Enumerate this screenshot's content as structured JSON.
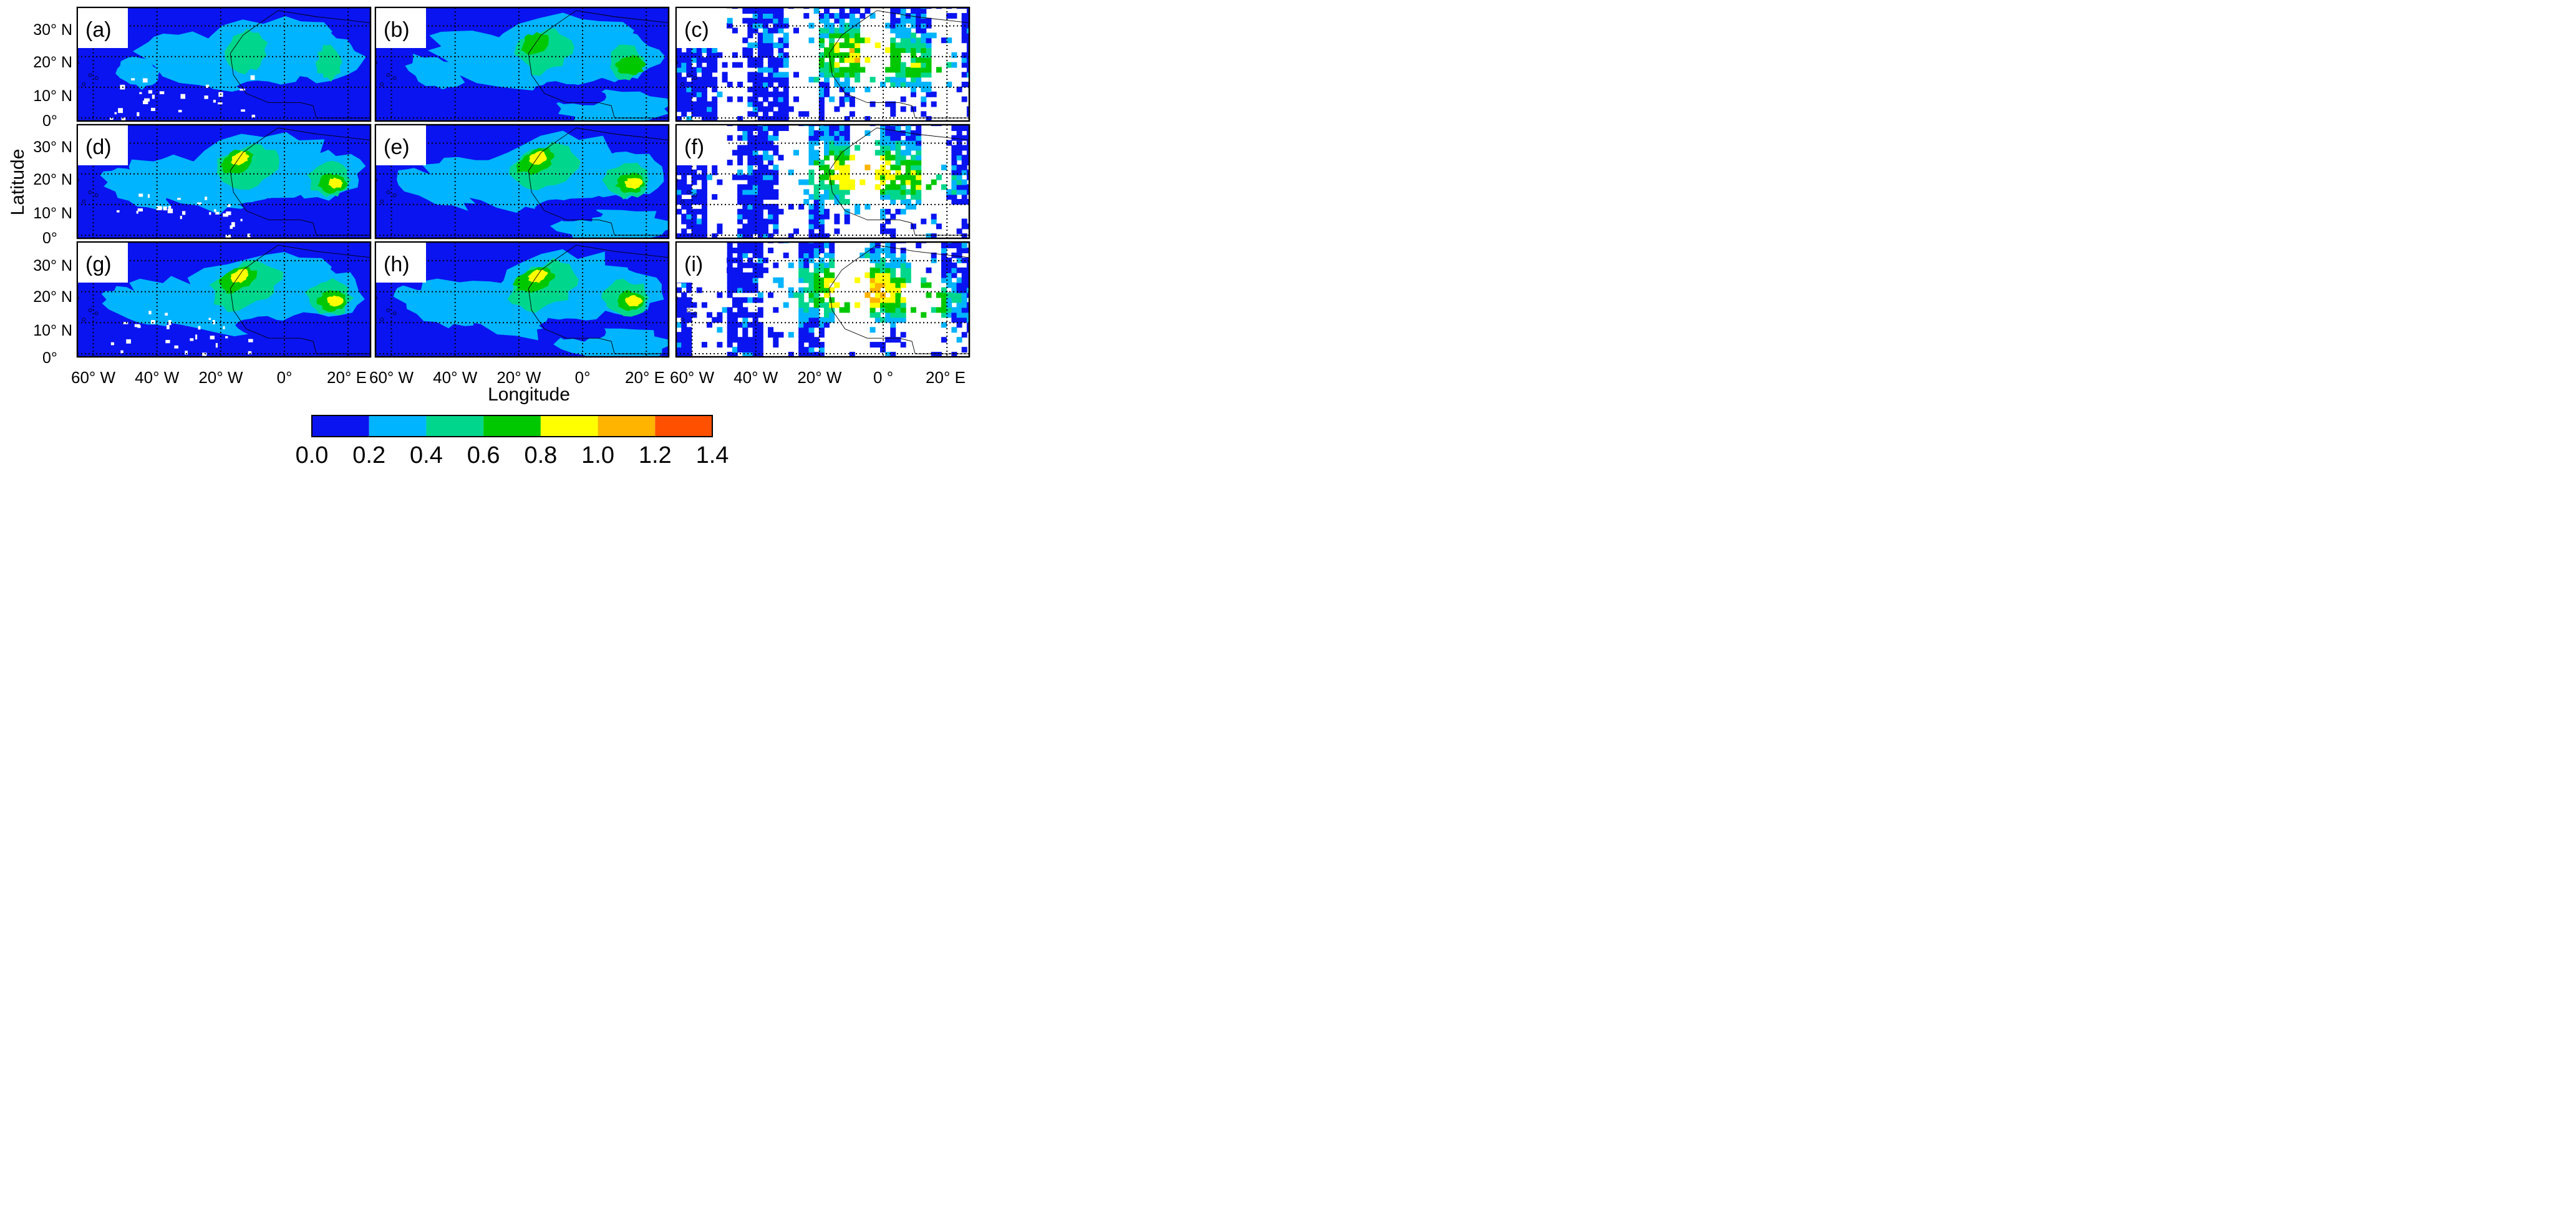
{
  "figure": {
    "ylabel": "Latitude",
    "xlabel": "Longitude",
    "lat_ticks": [
      "30° N",
      "20° N",
      "10° N",
      "0°"
    ],
    "lon_ticks": [
      [
        "60° W",
        "40° W",
        "20° W",
        "0°",
        "20° E"
      ],
      [
        "60° W",
        "40° W",
        "20° W",
        "0°",
        "20° E"
      ],
      [
        "60° W",
        "40° W",
        "20° W",
        "0 °",
        "20° E"
      ]
    ],
    "panels": [
      {
        "label": "(a)",
        "kind": "model",
        "intensity": 0.55
      },
      {
        "label": "(b)",
        "kind": "model",
        "intensity": 0.75
      },
      {
        "label": "(c)",
        "kind": "obs",
        "intensity": 0.85
      },
      {
        "label": "(d)",
        "kind": "model",
        "intensity": 0.9
      },
      {
        "label": "(e)",
        "kind": "model",
        "intensity": 1.0
      },
      {
        "label": "(f)",
        "kind": "obs",
        "intensity": 0.95
      },
      {
        "label": "(g)",
        "kind": "model",
        "intensity": 1.0
      },
      {
        "label": "(h)",
        "kind": "model",
        "intensity": 1.05
      },
      {
        "label": "(i)",
        "kind": "obs",
        "intensity": 1.05
      }
    ]
  },
  "colorbar": {
    "ticks": [
      "0.0",
      "0.2",
      "0.4",
      "0.6",
      "0.8",
      "1.0",
      "1.2",
      "1.4"
    ],
    "colors": [
      "#0a14f0",
      "#00b4ff",
      "#00d78c",
      "#00c800",
      "#ffff00",
      "#ffb400",
      "#ff5000"
    ]
  }
}
